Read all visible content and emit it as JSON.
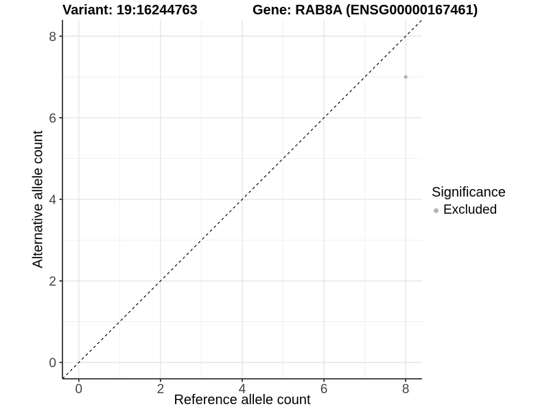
{
  "chart_data": {
    "type": "scatter",
    "title_left": "Variant: 19:16244763",
    "title_right": "Gene: RAB8A (ENSG00000167461)",
    "xlabel": "Reference allele count",
    "ylabel": "Alternative allele count",
    "xlim": [
      -0.4,
      8.4
    ],
    "ylim": [
      -0.4,
      8.4
    ],
    "x_ticks": [
      0,
      2,
      4,
      6,
      8
    ],
    "y_ticks": [
      0,
      2,
      4,
      6,
      8
    ],
    "x_minor_ticks": [
      1,
      3,
      5,
      7
    ],
    "y_minor_ticks": [
      1,
      3,
      5,
      7
    ],
    "grid": "major+minor",
    "identity_line": {
      "style": "dashed",
      "from": [
        -0.4,
        -0.4
      ],
      "to": [
        8.4,
        8.4
      ]
    },
    "points": [
      {
        "x": 8,
        "y": 7,
        "series": "Excluded"
      }
    ],
    "legend": {
      "position": "right",
      "title": "Significance",
      "items": [
        {
          "label": "Excluded",
          "color": "#b5b5b5"
        }
      ]
    }
  },
  "colors": {
    "background": "#ffffff",
    "grid_major": "#e3e3e3",
    "grid_minor": "#efefef",
    "axis_line": "#333333",
    "tick_mark": "#333333",
    "tick_label": "#444444",
    "identity_line": "#000000",
    "point_excluded": "#b5b5b5",
    "title_text": "#000000"
  }
}
